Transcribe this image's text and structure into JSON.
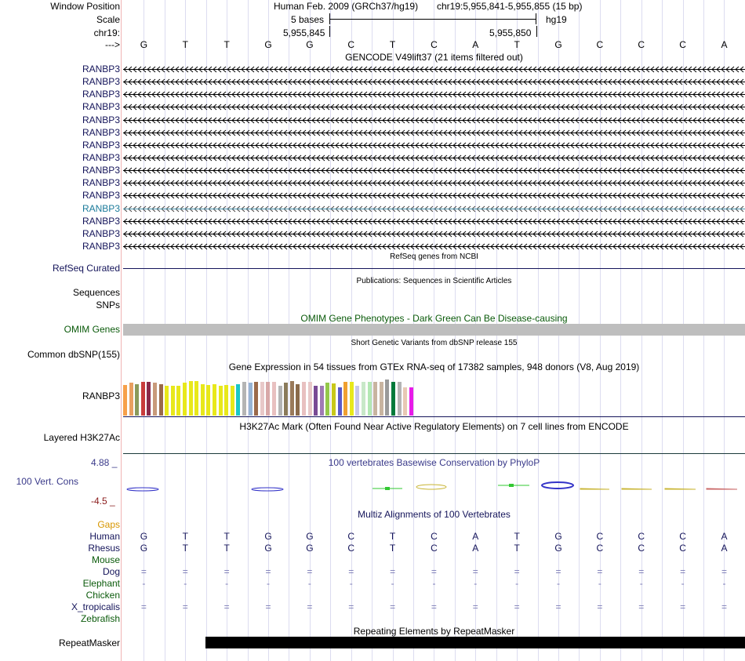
{
  "header": {
    "window_position_label": "Window Position",
    "assembly": "Human Feb. 2009 (GRCh37/hg19)",
    "position": "chr19:5,955,841-5,955,855 (15 bp)",
    "scale_label": "Scale",
    "scale_text": "5 bases",
    "scale_db": "hg19",
    "chrom_label": "chr19:",
    "coord_left": "5,955,845",
    "coord_right": "5,955,850",
    "strand_label": "--->"
  },
  "sequence": [
    "G",
    "T",
    "T",
    "G",
    "G",
    "C",
    "T",
    "C",
    "A",
    "T",
    "G",
    "C",
    "C",
    "C",
    "A"
  ],
  "gencode": {
    "title": "GENCODE V49lift37 (21 items filtered out)",
    "items": [
      "RANBP3",
      "RANBP3",
      "RANBP3",
      "RANBP3",
      "RANBP3",
      "RANBP3",
      "RANBP3",
      "RANBP3",
      "RANBP3",
      "RANBP3",
      "RANBP3",
      "RANBP3",
      "RANBP3",
      "RANBP3",
      "RANBP3"
    ],
    "highlight_index": 11
  },
  "refseq": {
    "title": "RefSeq genes from NCBI",
    "label": "RefSeq Curated"
  },
  "publications": {
    "title": "Publications: Sequences in Scientific Articles",
    "label_sequences": "Sequences",
    "label_snps": "SNPs"
  },
  "omim": {
    "title": "OMIM Gene Phenotypes - Dark Green Can Be Disease-causing",
    "label": "OMIM Genes"
  },
  "dbsnp": {
    "title": "Short Genetic Variants from dbSNP release 155",
    "label": "Common dbSNP(155)"
  },
  "gtex": {
    "title": "Gene Expression in 54 tissues from GTEx RNA-seq of 17382 samples, 948 donors (V8, Aug 2019)",
    "label": "RANBP3",
    "bars": [
      {
        "c": "#f7a04a",
        "v": 0.72
      },
      {
        "c": "#e8a060",
        "v": 0.78
      },
      {
        "c": "#8a9a5a",
        "v": 0.74
      },
      {
        "c": "#c83c3c",
        "v": 0.8
      },
      {
        "c": "#8a2a4a",
        "v": 0.8
      },
      {
        "c": "#c89a7a",
        "v": 0.78
      },
      {
        "c": "#9a6a4a",
        "v": 0.74
      },
      {
        "c": "#e8e81a",
        "v": 0.7
      },
      {
        "c": "#e8e81a",
        "v": 0.7
      },
      {
        "c": "#e8e81a",
        "v": 0.7
      },
      {
        "c": "#e8e81a",
        "v": 0.78
      },
      {
        "c": "#e8e81a",
        "v": 0.82
      },
      {
        "c": "#e8e81a",
        "v": 0.82
      },
      {
        "c": "#e8e81a",
        "v": 0.74
      },
      {
        "c": "#e8e81a",
        "v": 0.72
      },
      {
        "c": "#e8e81a",
        "v": 0.74
      },
      {
        "c": "#e8e81a",
        "v": 0.7
      },
      {
        "c": "#e8e81a",
        "v": 0.72
      },
      {
        "c": "#e8e81a",
        "v": 0.7
      },
      {
        "c": "#1ac8c8",
        "v": 0.74
      },
      {
        "c": "#b4b4b4",
        "v": 0.8
      },
      {
        "c": "#98b4d4",
        "v": 0.78
      },
      {
        "c": "#9a6a4a",
        "v": 0.8
      },
      {
        "c": "#e8c8c8",
        "v": 0.8
      },
      {
        "c": "#d8a8a8",
        "v": 0.8
      },
      {
        "c": "#e8c0c0",
        "v": 0.8
      },
      {
        "c": "#b4b4b4",
        "v": 0.7
      },
      {
        "c": "#8a7a5a",
        "v": 0.78
      },
      {
        "c": "#9a7a5a",
        "v": 0.82
      },
      {
        "c": "#8a6a4a",
        "v": 0.74
      },
      {
        "c": "#e8c0c0",
        "v": 0.8
      },
      {
        "c": "#e8c8c8",
        "v": 0.8
      },
      {
        "c": "#784a94",
        "v": 0.7
      },
      {
        "c": "#a07ab4",
        "v": 0.7
      },
      {
        "c": "#94c84a",
        "v": 0.78
      },
      {
        "c": "#c8c81a",
        "v": 0.76
      },
      {
        "c": "#5a5ac8",
        "v": 0.66
      },
      {
        "c": "#f0a030",
        "v": 0.8
      },
      {
        "c": "#e8e81a",
        "v": 0.8
      },
      {
        "c": "#c8c8e8",
        "v": 0.7
      },
      {
        "c": "#c8e8c8",
        "v": 0.8
      },
      {
        "c": "#b4e8b4",
        "v": 0.8
      },
      {
        "c": "#c8b4a0",
        "v": 0.8
      },
      {
        "c": "#c8b4a0",
        "v": 0.8
      },
      {
        "c": "#9a9a9a",
        "v": 0.86
      },
      {
        "c": "#007a3a",
        "v": 0.8
      },
      {
        "c": "#b4b4b4",
        "v": 0.8
      },
      {
        "c": "#e8c8b4",
        "v": 0.66
      },
      {
        "c": "#e81ae8",
        "v": 0.66
      }
    ]
  },
  "h3k27ac": {
    "title": "H3K27Ac Mark (Often Found Near Active Regulatory Elements) on 7 cell lines from ENCODE",
    "label": "Layered H3K27Ac"
  },
  "phylop": {
    "title": "100 vertebrates Basewise Conservation by PhyloP",
    "label": "100 Vert. Cons",
    "max": "4.88 _",
    "min": "-4.5 _"
  },
  "multiz": {
    "title": "Multiz Alignments of 100 Vertebrates",
    "gaps_label": "Gaps",
    "species": [
      {
        "name": "Human",
        "color": "#14145a",
        "row": [
          "G",
          "T",
          "T",
          "G",
          "G",
          "C",
          "T",
          "C",
          "A",
          "T",
          "G",
          "C",
          "C",
          "C",
          "A"
        ]
      },
      {
        "name": "Rhesus",
        "color": "#14145a",
        "row": [
          "G",
          "T",
          "T",
          "G",
          "G",
          "C",
          "T",
          "C",
          "A",
          "T",
          "G",
          "C",
          "C",
          "C",
          "A"
        ]
      },
      {
        "name": "Mouse",
        "color": "#0a5a0a",
        "row": []
      },
      {
        "name": "Dog",
        "color": "#14145a",
        "row": [
          "=",
          "=",
          "=",
          "=",
          "=",
          "=",
          "=",
          "=",
          "=",
          "=",
          "=",
          "=",
          "=",
          "=",
          "="
        ]
      },
      {
        "name": "Elephant",
        "color": "#0a5a0a",
        "row": [
          "-",
          "-",
          "-",
          "-",
          "-",
          "-",
          "-",
          "-",
          "-",
          "-",
          "-",
          "-",
          "-",
          "-",
          "-"
        ]
      },
      {
        "name": "Chicken",
        "color": "#0a5a0a",
        "row": []
      },
      {
        "name": "X_tropicalis",
        "color": "#14145a",
        "row": [
          "=",
          "=",
          "=",
          "=",
          "=",
          "=",
          "=",
          "=",
          "=",
          "=",
          "=",
          "=",
          "=",
          "=",
          "="
        ]
      },
      {
        "name": "Zebrafish",
        "color": "#0a5a0a",
        "row": []
      }
    ]
  },
  "repeatmasker": {
    "title": "Repeating Elements by RepeatMasker",
    "label": "RepeatMasker"
  }
}
